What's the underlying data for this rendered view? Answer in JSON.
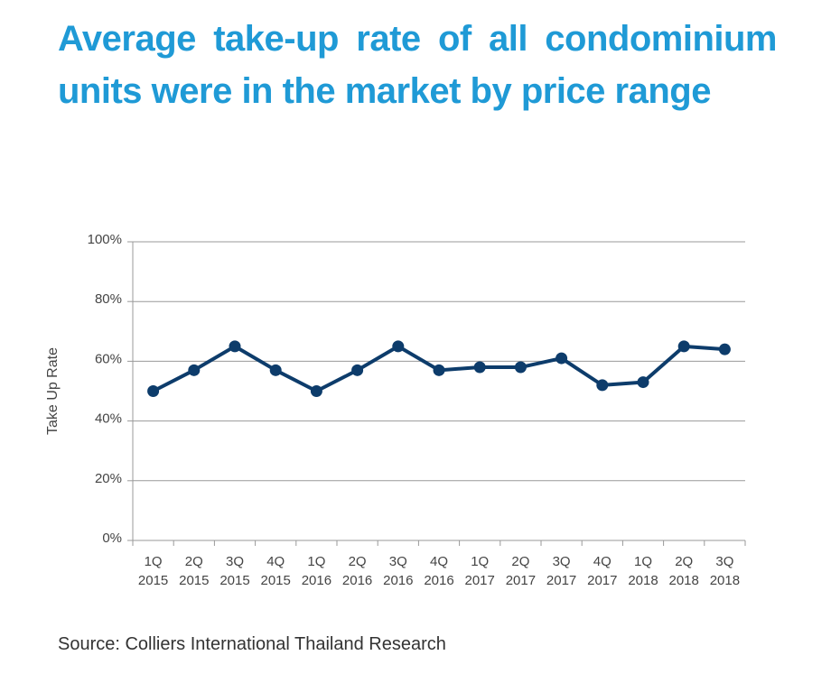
{
  "title": "Average take-up rate of all condominium units were in the market by price range",
  "source": "Source: Colliers International Thailand Research",
  "colors": {
    "title": "#1f9ad6",
    "line": "#0d3c6b",
    "grid": "#999999",
    "text": "#444444"
  },
  "chart_data": {
    "type": "line",
    "title": "",
    "xlabel": "",
    "ylabel": "Take Up Rate",
    "ylim": [
      0,
      100
    ],
    "yticks": [
      "0%",
      "20%",
      "40%",
      "60%",
      "80%",
      "100%"
    ],
    "grid": true,
    "categories": [
      [
        "1Q",
        "2015"
      ],
      [
        "2Q",
        "2015"
      ],
      [
        "3Q",
        "2015"
      ],
      [
        "4Q",
        "2015"
      ],
      [
        "1Q",
        "2016"
      ],
      [
        "2Q",
        "2016"
      ],
      [
        "3Q",
        "2016"
      ],
      [
        "4Q",
        "2016"
      ],
      [
        "1Q",
        "2017"
      ],
      [
        "2Q",
        "2017"
      ],
      [
        "3Q",
        "2017"
      ],
      [
        "4Q",
        "2017"
      ],
      [
        "1Q",
        "2018"
      ],
      [
        "2Q",
        "2018"
      ],
      [
        "3Q",
        "2018"
      ]
    ],
    "series": [
      {
        "name": "Take Up Rate",
        "values": [
          50,
          57,
          65,
          57,
          50,
          57,
          65,
          57,
          58,
          58,
          61,
          52,
          53,
          65,
          64
        ]
      }
    ]
  }
}
